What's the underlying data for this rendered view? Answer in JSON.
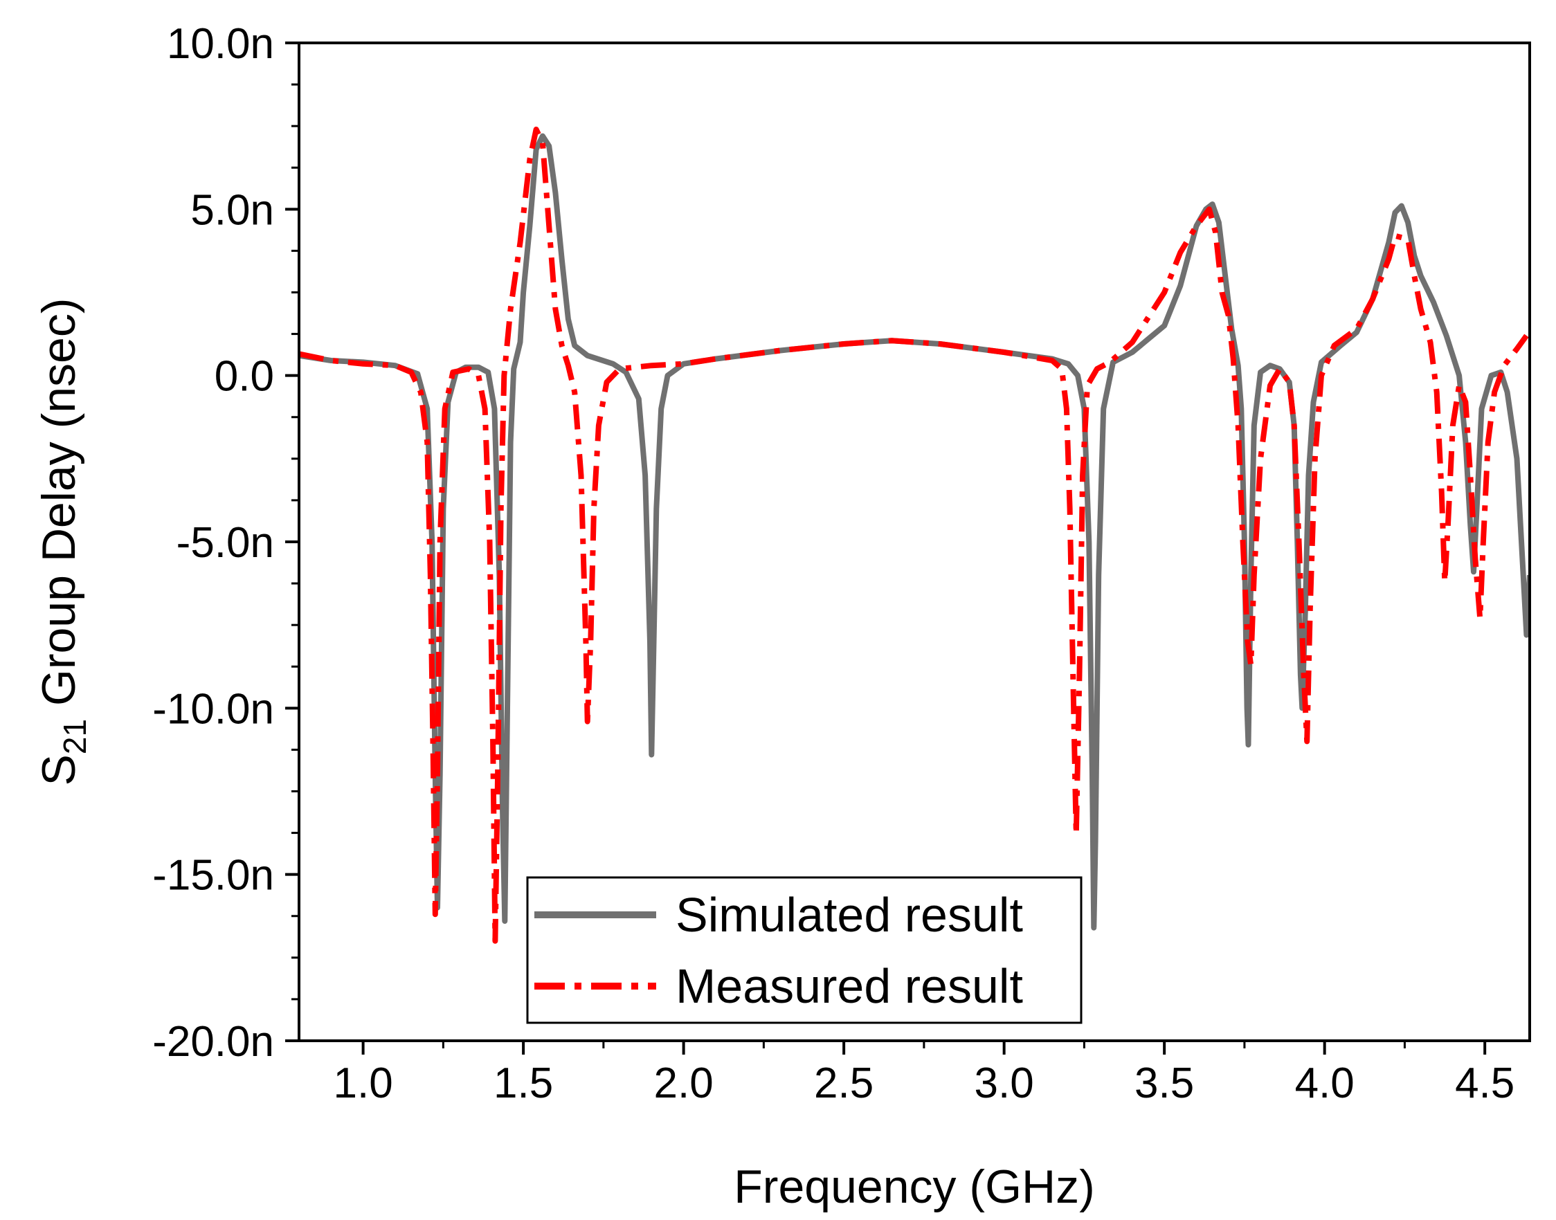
{
  "chart_data": {
    "type": "line",
    "xlabel": "Frequency (GHz)",
    "ylabel": {
      "main": "S",
      "subscript": "21",
      "rest": " Group Delay (nsec)"
    },
    "xlim": [
      0.8,
      4.64
    ],
    "ylim": [
      -20,
      10
    ],
    "xticks": [
      1.0,
      1.5,
      2.0,
      2.5,
      3.0,
      3.5,
      4.0,
      4.5
    ],
    "xtick_labels": [
      "1.0",
      "1.5",
      "2.0",
      "2.5",
      "3.0",
      "3.5",
      "4.0",
      "4.5"
    ],
    "yticks": [
      -20,
      -15,
      -10,
      -5,
      0,
      5,
      10
    ],
    "ytick_labels": [
      "-20.0n",
      "-15.0n",
      "-10.0n",
      "-5.0n",
      "0.0",
      "5.0n",
      "10.0n"
    ],
    "legend_position": "bottom-center",
    "series": [
      {
        "name": "Simulated result",
        "color": "#707070",
        "style": "solid",
        "points": [
          [
            0.8,
            0.6
          ],
          [
            0.9,
            0.45
          ],
          [
            1.0,
            0.4
          ],
          [
            1.1,
            0.3
          ],
          [
            1.17,
            0.05
          ],
          [
            1.2,
            -1.0
          ],
          [
            1.215,
            -5.0
          ],
          [
            1.225,
            -12.0
          ],
          [
            1.232,
            -16.0
          ],
          [
            1.24,
            -12.0
          ],
          [
            1.25,
            -4.0
          ],
          [
            1.265,
            -0.8
          ],
          [
            1.29,
            0.1
          ],
          [
            1.32,
            0.25
          ],
          [
            1.36,
            0.25
          ],
          [
            1.39,
            0.1
          ],
          [
            1.41,
            -1.0
          ],
          [
            1.425,
            -6.0
          ],
          [
            1.435,
            -13.0
          ],
          [
            1.442,
            -16.4
          ],
          [
            1.45,
            -10.0
          ],
          [
            1.46,
            -2.0
          ],
          [
            1.47,
            0.2
          ],
          [
            1.49,
            1.0
          ],
          [
            1.5,
            2.5
          ],
          [
            1.52,
            4.5
          ],
          [
            1.54,
            6.8
          ],
          [
            1.56,
            7.2
          ],
          [
            1.58,
            6.9
          ],
          [
            1.6,
            5.5
          ],
          [
            1.62,
            3.5
          ],
          [
            1.64,
            1.7
          ],
          [
            1.66,
            0.9
          ],
          [
            1.7,
            0.6
          ],
          [
            1.78,
            0.35
          ],
          [
            1.82,
            0.1
          ],
          [
            1.86,
            -0.7
          ],
          [
            1.88,
            -3.0
          ],
          [
            1.895,
            -8.0
          ],
          [
            1.9,
            -11.4
          ],
          [
            1.905,
            -9.0
          ],
          [
            1.915,
            -4.0
          ],
          [
            1.93,
            -1.0
          ],
          [
            1.95,
            0.0
          ],
          [
            2.0,
            0.35
          ],
          [
            2.1,
            0.5
          ],
          [
            2.3,
            0.75
          ],
          [
            2.5,
            0.95
          ],
          [
            2.65,
            1.05
          ],
          [
            2.8,
            0.95
          ],
          [
            3.0,
            0.7
          ],
          [
            3.15,
            0.5
          ],
          [
            3.2,
            0.35
          ],
          [
            3.23,
            0.0
          ],
          [
            3.25,
            -1.0
          ],
          [
            3.265,
            -5.0
          ],
          [
            3.275,
            -12.0
          ],
          [
            3.28,
            -16.6
          ],
          [
            3.285,
            -14.0
          ],
          [
            3.295,
            -6.0
          ],
          [
            3.31,
            -1.0
          ],
          [
            3.34,
            0.4
          ],
          [
            3.4,
            0.7
          ],
          [
            3.5,
            1.5
          ],
          [
            3.55,
            2.7
          ],
          [
            3.6,
            4.5
          ],
          [
            3.63,
            5.0
          ],
          [
            3.65,
            5.15
          ],
          [
            3.67,
            4.6
          ],
          [
            3.69,
            3.0
          ],
          [
            3.71,
            1.4
          ],
          [
            3.73,
            0.3
          ],
          [
            3.74,
            -1.0
          ],
          [
            3.75,
            -5.0
          ],
          [
            3.758,
            -10.0
          ],
          [
            3.762,
            -11.1
          ],
          [
            3.77,
            -6.0
          ],
          [
            3.78,
            -1.5
          ],
          [
            3.8,
            0.1
          ],
          [
            3.83,
            0.3
          ],
          [
            3.86,
            0.2
          ],
          [
            3.89,
            -0.2
          ],
          [
            3.905,
            -1.5
          ],
          [
            3.915,
            -5.0
          ],
          [
            3.925,
            -9.0
          ],
          [
            3.93,
            -10.0
          ],
          [
            3.94,
            -7.0
          ],
          [
            3.95,
            -3.0
          ],
          [
            3.965,
            -0.8
          ],
          [
            3.99,
            0.4
          ],
          [
            4.05,
            0.9
          ],
          [
            4.1,
            1.3
          ],
          [
            4.15,
            2.3
          ],
          [
            4.2,
            4.0
          ],
          [
            4.22,
            4.9
          ],
          [
            4.24,
            5.1
          ],
          [
            4.26,
            4.6
          ],
          [
            4.28,
            3.6
          ],
          [
            4.3,
            3.0
          ],
          [
            4.34,
            2.2
          ],
          [
            4.38,
            1.2
          ],
          [
            4.42,
            0.0
          ],
          [
            4.44,
            -2.0
          ],
          [
            4.455,
            -4.5
          ],
          [
            4.465,
            -5.9
          ],
          [
            4.475,
            -4.0
          ],
          [
            4.49,
            -1.0
          ],
          [
            4.52,
            0.0
          ],
          [
            4.55,
            0.1
          ],
          [
            4.57,
            -0.5
          ],
          [
            4.6,
            -2.5
          ],
          [
            4.62,
            -6.0
          ],
          [
            4.63,
            -7.8
          ],
          [
            4.64,
            -6.0
          ]
        ]
      },
      {
        "name": "Measured result",
        "color": "#ff0000",
        "style": "dashdot",
        "points": [
          [
            0.8,
            0.65
          ],
          [
            0.9,
            0.45
          ],
          [
            1.0,
            0.35
          ],
          [
            1.1,
            0.3
          ],
          [
            1.15,
            0.1
          ],
          [
            1.18,
            -0.5
          ],
          [
            1.2,
            -2.0
          ],
          [
            1.21,
            -6.0
          ],
          [
            1.218,
            -11.0
          ],
          [
            1.225,
            -16.2
          ],
          [
            1.232,
            -12.0
          ],
          [
            1.24,
            -5.0
          ],
          [
            1.255,
            -1.0
          ],
          [
            1.28,
            0.1
          ],
          [
            1.33,
            0.2
          ],
          [
            1.36,
            0.0
          ],
          [
            1.38,
            -1.0
          ],
          [
            1.395,
            -5.0
          ],
          [
            1.405,
            -11.0
          ],
          [
            1.412,
            -17.0
          ],
          [
            1.42,
            -12.0
          ],
          [
            1.43,
            -4.0
          ],
          [
            1.44,
            0.0
          ],
          [
            1.46,
            2.0
          ],
          [
            1.49,
            4.0
          ],
          [
            1.52,
            6.5
          ],
          [
            1.54,
            7.4
          ],
          [
            1.56,
            7.0
          ],
          [
            1.58,
            4.5
          ],
          [
            1.6,
            2.0
          ],
          [
            1.62,
            0.9
          ],
          [
            1.64,
            0.3
          ],
          [
            1.66,
            -0.5
          ],
          [
            1.68,
            -3.0
          ],
          [
            1.695,
            -8.0
          ],
          [
            1.7,
            -10.4
          ],
          [
            1.71,
            -8.0
          ],
          [
            1.72,
            -4.0
          ],
          [
            1.735,
            -1.5
          ],
          [
            1.76,
            -0.2
          ],
          [
            1.8,
            0.2
          ],
          [
            1.9,
            0.3
          ],
          [
            2.0,
            0.35
          ],
          [
            2.1,
            0.5
          ],
          [
            2.3,
            0.75
          ],
          [
            2.5,
            0.95
          ],
          [
            2.65,
            1.05
          ],
          [
            2.8,
            0.95
          ],
          [
            3.0,
            0.7
          ],
          [
            3.15,
            0.45
          ],
          [
            3.18,
            0.2
          ],
          [
            3.195,
            -1.0
          ],
          [
            3.205,
            -4.0
          ],
          [
            3.215,
            -9.0
          ],
          [
            3.225,
            -13.8
          ],
          [
            3.235,
            -9.0
          ],
          [
            3.245,
            -3.0
          ],
          [
            3.26,
            -0.3
          ],
          [
            3.29,
            0.2
          ],
          [
            3.33,
            0.4
          ],
          [
            3.4,
            1.0
          ],
          [
            3.5,
            2.5
          ],
          [
            3.55,
            3.7
          ],
          [
            3.6,
            4.5
          ],
          [
            3.64,
            5.0
          ],
          [
            3.66,
            4.3
          ],
          [
            3.68,
            2.5
          ],
          [
            3.7,
            1.8
          ],
          [
            3.715,
            0.5
          ],
          [
            3.73,
            -1.5
          ],
          [
            3.745,
            -5.0
          ],
          [
            3.76,
            -8.0
          ],
          [
            3.77,
            -8.7
          ],
          [
            3.78,
            -6.0
          ],
          [
            3.8,
            -2.5
          ],
          [
            3.83,
            -0.3
          ],
          [
            3.86,
            0.2
          ],
          [
            3.89,
            -0.2
          ],
          [
            3.905,
            -1.5
          ],
          [
            3.92,
            -5.0
          ],
          [
            3.935,
            -9.0
          ],
          [
            3.945,
            -11.0
          ],
          [
            3.955,
            -7.0
          ],
          [
            3.97,
            -2.5
          ],
          [
            3.99,
            0.0
          ],
          [
            4.03,
            0.9
          ],
          [
            4.1,
            1.4
          ],
          [
            4.15,
            2.3
          ],
          [
            4.2,
            3.5
          ],
          [
            4.22,
            4.2
          ],
          [
            4.26,
            4.1
          ],
          [
            4.28,
            3.0
          ],
          [
            4.3,
            2.0
          ],
          [
            4.33,
            1.0
          ],
          [
            4.35,
            -0.5
          ],
          [
            4.365,
            -3.5
          ],
          [
            4.375,
            -6.2
          ],
          [
            4.385,
            -4.5
          ],
          [
            4.4,
            -1.5
          ],
          [
            4.42,
            -0.3
          ],
          [
            4.44,
            -0.8
          ],
          [
            4.455,
            -3.0
          ],
          [
            4.47,
            -5.5
          ],
          [
            4.485,
            -7.3
          ],
          [
            4.495,
            -5.0
          ],
          [
            4.51,
            -2.0
          ],
          [
            4.53,
            -0.5
          ],
          [
            4.56,
            0.3
          ],
          [
            4.6,
            0.8
          ],
          [
            4.63,
            1.2
          ]
        ]
      }
    ]
  }
}
